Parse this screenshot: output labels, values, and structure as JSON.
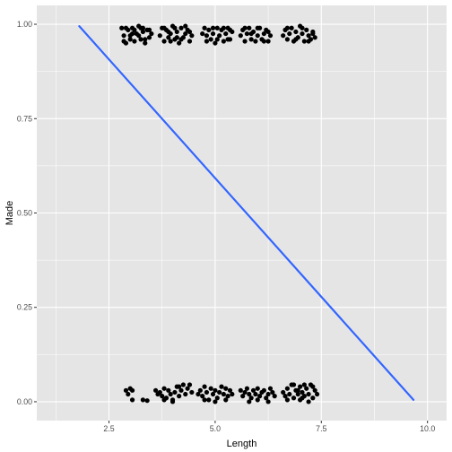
{
  "chart_data": {
    "type": "scatter",
    "title": "",
    "xlabel": "Length",
    "ylabel": "Made",
    "xlim": [
      0.8,
      10.45
    ],
    "ylim": [
      -0.05,
      1.05
    ],
    "x_ticks": [
      2.5,
      5.0,
      7.5,
      10.0
    ],
    "x_tick_labels": [
      "2.5",
      "5.0",
      "7.5",
      "10.0"
    ],
    "y_ticks": [
      0.0,
      0.25,
      0.5,
      0.75,
      1.0
    ],
    "y_tick_labels": [
      "0.00",
      "0.25",
      "0.50",
      "0.75",
      "1.00"
    ],
    "grid": true,
    "colors": {
      "panel": "#e5e5e5",
      "grid_major": "#ffffff",
      "points": "#000000",
      "fit_line": "#3366ff"
    },
    "fit_line": {
      "x": [
        1.8,
        9.67
      ],
      "y": [
        0.995,
        0.005
      ]
    },
    "series": [
      {
        "points": [
          [
            2.8,
            0.99
          ],
          [
            2.85,
            0.97
          ],
          [
            2.9,
            0.95
          ],
          [
            2.95,
            0.985
          ],
          [
            3.0,
            0.97
          ],
          [
            3.05,
            0.99
          ],
          [
            3.1,
            0.955
          ],
          [
            3.15,
            0.975
          ],
          [
            3.2,
            0.995
          ],
          [
            3.25,
            0.96
          ],
          [
            3.3,
            0.98
          ],
          [
            3.35,
            0.95
          ],
          [
            3.4,
            0.985
          ],
          [
            3.45,
            0.965
          ],
          [
            3.5,
            0.975
          ],
          [
            2.9,
            0.99
          ],
          [
            3.0,
            0.96
          ],
          [
            3.1,
            0.985
          ],
          [
            3.2,
            0.97
          ],
          [
            3.3,
            0.99
          ],
          [
            3.35,
            0.96
          ],
          [
            2.85,
            0.955
          ],
          [
            3.05,
            0.975
          ],
          [
            3.25,
            0.99
          ],
          [
            3.45,
            0.985
          ],
          [
            3.7,
            0.97
          ],
          [
            3.75,
            0.99
          ],
          [
            3.8,
            0.955
          ],
          [
            3.85,
            0.985
          ],
          [
            3.9,
            0.965
          ],
          [
            3.95,
            0.975
          ],
          [
            4.0,
            0.995
          ],
          [
            4.05,
            0.96
          ],
          [
            4.1,
            0.98
          ],
          [
            4.15,
            0.95
          ],
          [
            4.2,
            0.99
          ],
          [
            4.25,
            0.965
          ],
          [
            4.3,
            0.975
          ],
          [
            4.35,
            0.985
          ],
          [
            4.4,
            0.955
          ],
          [
            4.45,
            0.97
          ],
          [
            3.8,
            0.99
          ],
          [
            3.95,
            0.955
          ],
          [
            4.05,
            0.99
          ],
          [
            4.2,
            0.96
          ],
          [
            4.3,
            0.995
          ],
          [
            4.4,
            0.98
          ],
          [
            3.9,
            0.98
          ],
          [
            4.1,
            0.965
          ],
          [
            4.7,
            0.975
          ],
          [
            4.75,
            0.99
          ],
          [
            4.8,
            0.955
          ],
          [
            4.85,
            0.985
          ],
          [
            4.9,
            0.96
          ],
          [
            4.95,
            0.975
          ],
          [
            5.0,
            0.95
          ],
          [
            5.05,
            0.99
          ],
          [
            5.1,
            0.97
          ],
          [
            5.15,
            0.985
          ],
          [
            5.2,
            0.955
          ],
          [
            5.25,
            0.975
          ],
          [
            5.3,
            0.99
          ],
          [
            5.35,
            0.96
          ],
          [
            5.4,
            0.98
          ],
          [
            4.8,
            0.97
          ],
          [
            4.95,
            0.99
          ],
          [
            5.05,
            0.96
          ],
          [
            5.2,
            0.99
          ],
          [
            5.3,
            0.96
          ],
          [
            5.35,
            0.985
          ],
          [
            5.6,
            0.97
          ],
          [
            5.65,
            0.985
          ],
          [
            5.7,
            0.955
          ],
          [
            5.75,
            0.975
          ],
          [
            5.8,
            0.99
          ],
          [
            5.85,
            0.96
          ],
          [
            5.9,
            0.98
          ],
          [
            5.95,
            0.955
          ],
          [
            6.0,
            0.97
          ],
          [
            6.05,
            0.99
          ],
          [
            6.1,
            0.96
          ],
          [
            6.15,
            0.975
          ],
          [
            6.2,
            0.985
          ],
          [
            6.25,
            0.955
          ],
          [
            6.3,
            0.97
          ],
          [
            5.7,
            0.99
          ],
          [
            5.85,
            0.975
          ],
          [
            6.0,
            0.99
          ],
          [
            6.15,
            0.955
          ],
          [
            6.25,
            0.98
          ],
          [
            6.6,
            0.97
          ],
          [
            6.65,
            0.985
          ],
          [
            6.7,
            0.96
          ],
          [
            6.75,
            0.975
          ],
          [
            6.8,
            0.99
          ],
          [
            6.85,
            0.955
          ],
          [
            6.9,
            0.98
          ],
          [
            6.95,
            0.965
          ],
          [
            7.0,
            0.995
          ],
          [
            7.05,
            0.975
          ],
          [
            7.1,
            0.955
          ],
          [
            7.15,
            0.985
          ],
          [
            7.2,
            0.97
          ],
          [
            7.25,
            0.96
          ],
          [
            7.3,
            0.98
          ],
          [
            7.35,
            0.965
          ],
          [
            6.7,
            0.99
          ],
          [
            6.9,
            0.96
          ],
          [
            7.05,
            0.99
          ],
          [
            7.2,
            0.955
          ],
          [
            7.3,
            0.975
          ]
        ]
      },
      {
        "points": [
          [
            2.9,
            0.03
          ],
          [
            2.95,
            0.02
          ],
          [
            3.0,
            0.035
          ],
          [
            3.05,
            0.005
          ],
          [
            3.3,
            0.005
          ],
          [
            3.4,
            0.003
          ],
          [
            3.05,
            0.03
          ],
          [
            3.6,
            0.03
          ],
          [
            3.65,
            0.02
          ],
          [
            3.7,
            0.025
          ],
          [
            3.75,
            0.015
          ],
          [
            3.8,
            0.035
          ],
          [
            3.85,
            0.01
          ],
          [
            3.9,
            0.03
          ],
          [
            3.95,
            0.02
          ],
          [
            4.0,
            0.005
          ],
          [
            4.05,
            0.025
          ],
          [
            4.1,
            0.04
          ],
          [
            4.15,
            0.015
          ],
          [
            4.2,
            0.03
          ],
          [
            4.25,
            0.045
          ],
          [
            4.3,
            0.02
          ],
          [
            4.35,
            0.035
          ],
          [
            4.4,
            0.045
          ],
          [
            4.45,
            0.025
          ],
          [
            3.8,
            0.005
          ],
          [
            4.0,
            0.0
          ],
          [
            4.15,
            0.04
          ],
          [
            4.6,
            0.02
          ],
          [
            4.65,
            0.03
          ],
          [
            4.7,
            0.015
          ],
          [
            4.75,
            0.04
          ],
          [
            4.8,
            0.025
          ],
          [
            4.85,
            0.005
          ],
          [
            4.9,
            0.035
          ],
          [
            4.95,
            0.02
          ],
          [
            5.0,
            0.03
          ],
          [
            5.05,
            0.01
          ],
          [
            5.1,
            0.025
          ],
          [
            5.15,
            0.04
          ],
          [
            5.2,
            0.02
          ],
          [
            5.25,
            0.035
          ],
          [
            5.3,
            0.015
          ],
          [
            5.35,
            0.03
          ],
          [
            5.4,
            0.02
          ],
          [
            4.75,
            0.005
          ],
          [
            5.0,
            0.0
          ],
          [
            5.25,
            0.005
          ],
          [
            5.6,
            0.03
          ],
          [
            5.65,
            0.015
          ],
          [
            5.7,
            0.025
          ],
          [
            5.75,
            0.035
          ],
          [
            5.8,
            0.02
          ],
          [
            5.85,
            0.01
          ],
          [
            5.9,
            0.03
          ],
          [
            5.95,
            0.02
          ],
          [
            6.0,
            0.035
          ],
          [
            6.05,
            0.015
          ],
          [
            6.1,
            0.025
          ],
          [
            6.15,
            0.03
          ],
          [
            6.2,
            0.01
          ],
          [
            6.25,
            0.02
          ],
          [
            6.3,
            0.035
          ],
          [
            6.35,
            0.025
          ],
          [
            6.4,
            0.015
          ],
          [
            5.8,
            0.0
          ],
          [
            6.0,
            0.005
          ],
          [
            6.25,
            0.0
          ],
          [
            6.6,
            0.025
          ],
          [
            6.65,
            0.015
          ],
          [
            6.7,
            0.035
          ],
          [
            6.75,
            0.02
          ],
          [
            6.8,
            0.045
          ],
          [
            6.85,
            0.01
          ],
          [
            6.9,
            0.03
          ],
          [
            6.95,
            0.02
          ],
          [
            7.0,
            0.04
          ],
          [
            7.05,
            0.025
          ],
          [
            7.1,
            0.015
          ],
          [
            7.15,
            0.035
          ],
          [
            7.2,
            0.02
          ],
          [
            7.25,
            0.045
          ],
          [
            7.3,
            0.01
          ],
          [
            7.35,
            0.03
          ],
          [
            7.4,
            0.02
          ],
          [
            6.7,
            0.005
          ],
          [
            6.85,
            0.045
          ],
          [
            7.0,
            0.005
          ],
          [
            7.1,
            0.045
          ],
          [
            7.2,
            0.0
          ],
          [
            7.3,
            0.04
          ],
          [
            6.95,
            0.03
          ],
          [
            7.05,
            0.01
          ]
        ]
      }
    ]
  }
}
